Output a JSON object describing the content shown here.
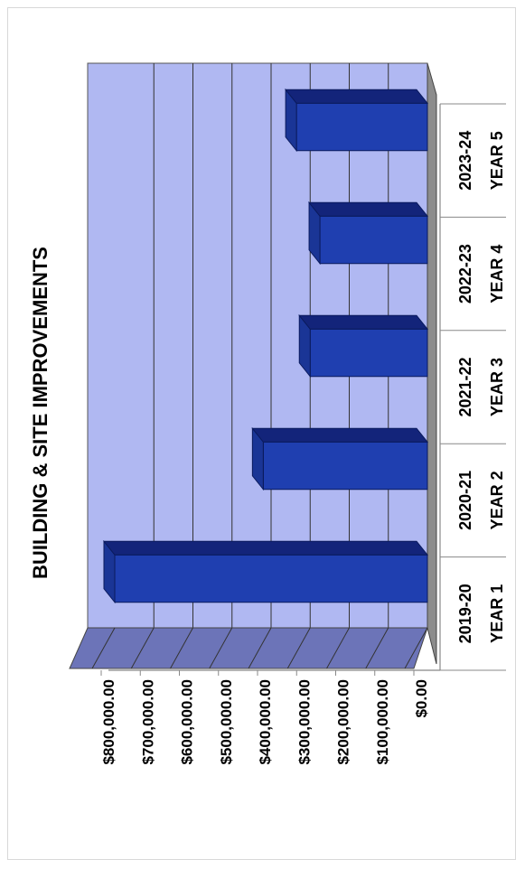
{
  "chart_data": {
    "type": "bar",
    "title": "BUILDING & SITE IMPROVEMENTS",
    "categories": [
      "2019-20",
      "2020-21",
      "2021-22",
      "2022-23",
      "2023-24"
    ],
    "year_labels": [
      "YEAR 1",
      "YEAR 2",
      "YEAR 3",
      "YEAR 4",
      "YEAR 5"
    ],
    "values": [
      800000,
      420000,
      300000,
      275000,
      335000
    ],
    "ylim": [
      0,
      800000
    ],
    "yticks": [
      "$0.00",
      "$100,000.00",
      "$200,000.00",
      "$300,000.00",
      "$400,000.00",
      "$500,000.00",
      "$600,000.00",
      "$700,000.00",
      "$800,000.00"
    ],
    "grid": true,
    "style": "3d",
    "orientation": "rotated-90",
    "colors": {
      "bar_front": "#1f3fb0",
      "bar_top": "#13247a",
      "bar_side": "#1a3596",
      "wall": "#b0b8f2",
      "floor": "#6c74b8",
      "side_wall": "#8c8c8c"
    }
  }
}
